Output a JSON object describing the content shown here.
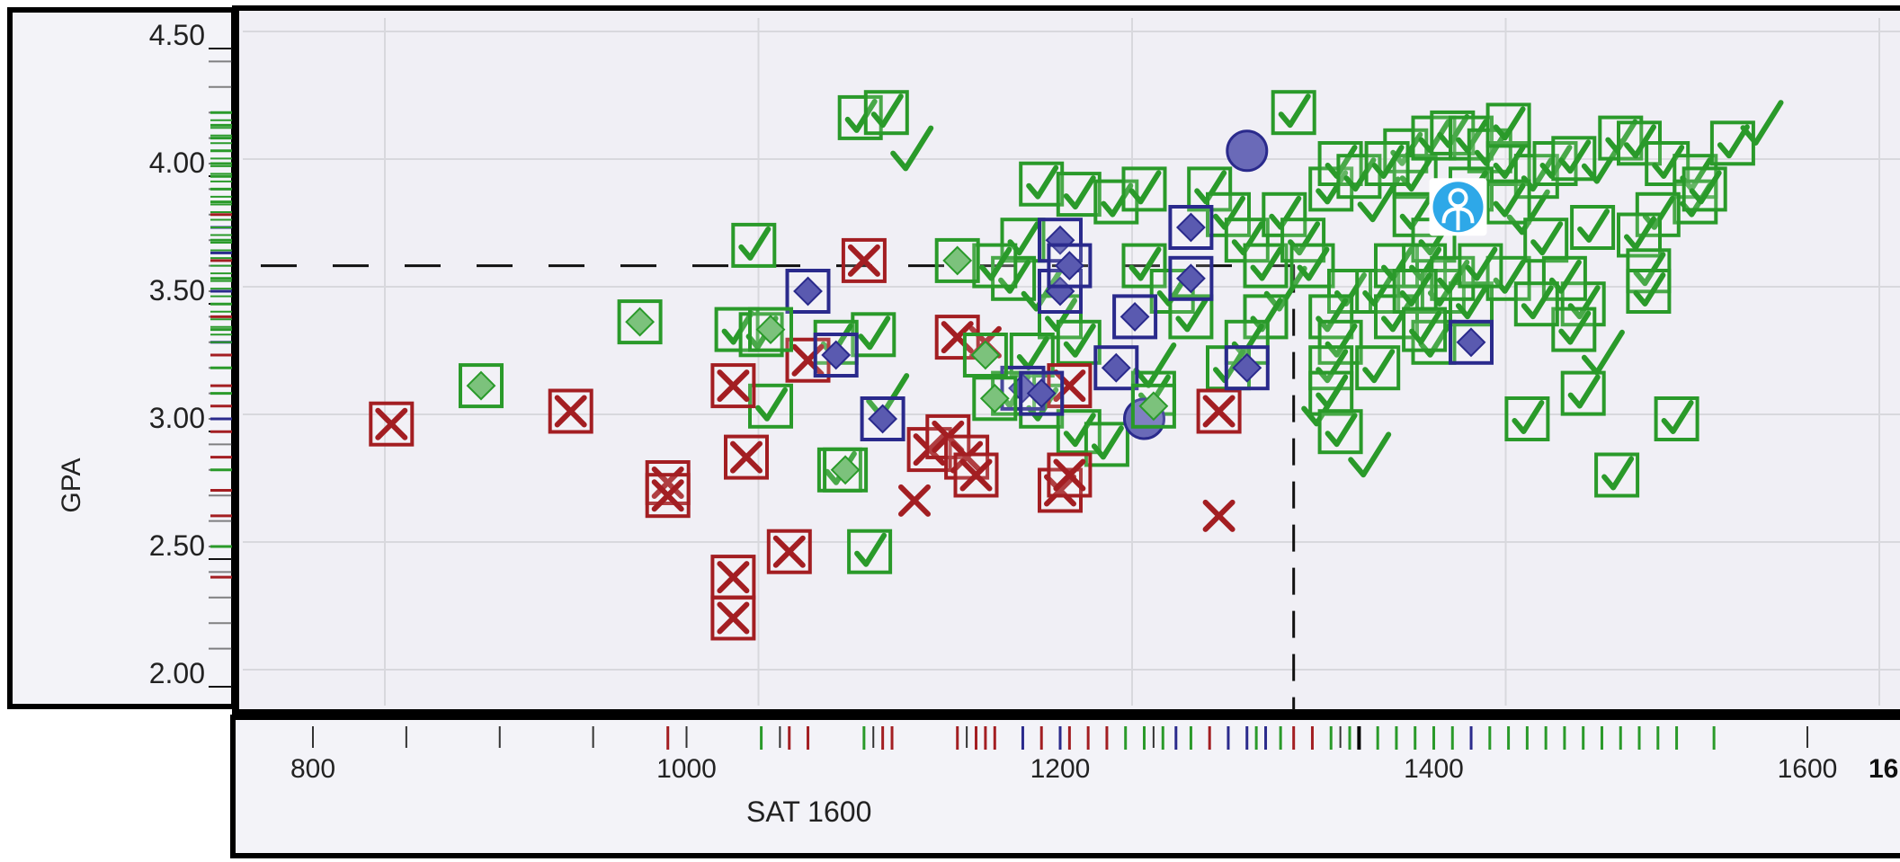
{
  "chart_data": {
    "type": "scatter",
    "xlabel": "SAT 1600",
    "ylabel": "GPA",
    "xlim": [
      780,
      1660
    ],
    "ylim": [
      1.95,
      4.55
    ],
    "x_ticks": [
      "800",
      "1000",
      "1200",
      "1400",
      "1600",
      "16"
    ],
    "y_ticks": [
      "4.50",
      "4.00",
      "3.50",
      "3.00",
      "2.50",
      "2.00"
    ],
    "grid": true,
    "reference_lines": {
      "gpa": 3.6,
      "sat": 1325
    },
    "colors": {
      "accepted": "#2a9a2a",
      "rejected": "#a31e22",
      "waitlisted": "#2a2a8c",
      "you": "#2ea8e8"
    },
    "user_marker": {
      "x": 1413,
      "y": 3.83,
      "icon": "person-icon"
    },
    "series": [
      {
        "category": "accepted",
        "marker": "check",
        "points": [
          [
            1093,
            4.18
          ],
          [
            1107,
            4.2
          ],
          [
            1120,
            4.05
          ],
          [
            1036,
            3.68
          ],
          [
            1100,
            3.33
          ],
          [
            1107,
            3.08
          ],
          [
            1098,
            2.48
          ],
          [
            1045,
            3.05
          ],
          [
            1027,
            3.35
          ],
          [
            1040,
            3.33
          ],
          [
            1080,
            3.3
          ],
          [
            1082,
            2.8
          ],
          [
            1190,
            3.92
          ],
          [
            1210,
            3.88
          ],
          [
            1230,
            3.85
          ],
          [
            1245,
            3.9
          ],
          [
            1180,
            3.7
          ],
          [
            1175,
            3.55
          ],
          [
            1165,
            3.6
          ],
          [
            1190,
            3.5
          ],
          [
            1200,
            3.4
          ],
          [
            1210,
            3.3
          ],
          [
            1185,
            3.25
          ],
          [
            1175,
            3.1
          ],
          [
            1190,
            3.05
          ],
          [
            1210,
            2.95
          ],
          [
            1225,
            2.9
          ],
          [
            1250,
            3.1
          ],
          [
            1250,
            3.2
          ],
          [
            1245,
            3.6
          ],
          [
            1260,
            3.5
          ],
          [
            1270,
            3.4
          ],
          [
            1280,
            3.9
          ],
          [
            1290,
            3.8
          ],
          [
            1300,
            3.7
          ],
          [
            1310,
            3.6
          ],
          [
            1320,
            3.5
          ],
          [
            1310,
            3.4
          ],
          [
            1300,
            3.3
          ],
          [
            1290,
            3.2
          ],
          [
            1320,
            3.8
          ],
          [
            1330,
            3.7
          ],
          [
            1335,
            3.6
          ],
          [
            1325,
            4.2
          ],
          [
            1345,
            3.9
          ],
          [
            1350,
            4.0
          ],
          [
            1355,
            3.5
          ],
          [
            1345,
            3.4
          ],
          [
            1350,
            3.3
          ],
          [
            1345,
            3.2
          ],
          [
            1345,
            3.1
          ],
          [
            1340,
            3.05
          ],
          [
            1350,
            2.95
          ],
          [
            1365,
            2.85
          ],
          [
            1370,
            3.5
          ],
          [
            1380,
            3.4
          ],
          [
            1380,
            3.6
          ],
          [
            1385,
            4.05
          ],
          [
            1390,
            3.95
          ],
          [
            1400,
            4.1
          ],
          [
            1410,
            4.12
          ],
          [
            1420,
            4.1
          ],
          [
            1430,
            4.05
          ],
          [
            1440,
            4.0
          ],
          [
            1390,
            3.8
          ],
          [
            1400,
            3.7
          ],
          [
            1395,
            3.6
          ],
          [
            1405,
            3.5
          ],
          [
            1420,
            3.45
          ],
          [
            1440,
            3.55
          ],
          [
            1450,
            3.8
          ],
          [
            1455,
            3.95
          ],
          [
            1465,
            4.0
          ],
          [
            1475,
            4.02
          ],
          [
            1490,
            4.0
          ],
          [
            1500,
            4.1
          ],
          [
            1510,
            4.08
          ],
          [
            1525,
            4.0
          ],
          [
            1540,
            3.95
          ],
          [
            1540,
            3.85
          ],
          [
            1520,
            3.8
          ],
          [
            1510,
            3.72
          ],
          [
            1515,
            3.58
          ],
          [
            1515,
            3.5
          ],
          [
            1485,
            3.75
          ],
          [
            1480,
            3.45
          ],
          [
            1475,
            3.35
          ],
          [
            1490,
            3.25
          ],
          [
            1480,
            3.1
          ],
          [
            1450,
            3.0
          ],
          [
            1400,
            3.3
          ],
          [
            1410,
            3.55
          ],
          [
            1425,
            3.6
          ],
          [
            1530,
            3.0
          ],
          [
            1498,
            2.78
          ],
          [
            1545,
            3.9
          ],
          [
            1560,
            4.08
          ],
          [
            1575,
            4.15
          ],
          [
            1410,
            3.82
          ],
          [
            1420,
            3.9
          ],
          [
            1440,
            3.85
          ],
          [
            1460,
            3.7
          ],
          [
            1470,
            3.55
          ],
          [
            1455,
            3.45
          ],
          [
            1370,
            3.85
          ],
          [
            1360,
            3.95
          ],
          [
            1375,
            4.0
          ],
          [
            1440,
            4.15
          ],
          [
            1390,
            3.5
          ],
          [
            1395,
            3.35
          ],
          [
            1370,
            3.2
          ]
        ]
      },
      {
        "category": "rejected",
        "marker": "x",
        "points": [
          [
            842,
            2.98
          ],
          [
            938,
            3.03
          ],
          [
            990,
            2.75
          ],
          [
            990,
            2.7
          ],
          [
            1025,
            3.13
          ],
          [
            1032,
            2.85
          ],
          [
            1025,
            2.38
          ],
          [
            1025,
            2.22
          ],
          [
            1055,
            2.48
          ],
          [
            1065,
            3.23
          ],
          [
            1095,
            3.62
          ],
          [
            1122,
            2.68
          ],
          [
            1130,
            2.88
          ],
          [
            1140,
            2.93
          ],
          [
            1150,
            2.85
          ],
          [
            1155,
            2.78
          ],
          [
            1160,
            3.3
          ],
          [
            1145,
            3.32
          ],
          [
            1200,
            2.72
          ],
          [
            1205,
            2.78
          ],
          [
            1205,
            3.13
          ],
          [
            1285,
            3.03
          ],
          [
            1285,
            2.62
          ]
        ]
      },
      {
        "category": "waitlisted",
        "marker": "diamond",
        "points": [
          [
            1065,
            3.5
          ],
          [
            1080,
            3.25
          ],
          [
            1105,
            3.0
          ],
          [
            1180,
            3.12
          ],
          [
            1190,
            3.1
          ],
          [
            1200,
            3.5
          ],
          [
            1200,
            3.7
          ],
          [
            1205,
            3.6
          ],
          [
            1240,
            3.4
          ],
          [
            1230,
            3.2
          ],
          [
            1270,
            3.75
          ],
          [
            1270,
            3.55
          ],
          [
            1300,
            3.2
          ],
          [
            1245,
            3.0
          ],
          [
            1300,
            4.05
          ],
          [
            1420,
            3.3
          ]
        ]
      },
      {
        "category": "accepted-diamond",
        "marker": "diamond",
        "points": [
          [
            890,
            3.13
          ],
          [
            975,
            3.38
          ],
          [
            1045,
            3.35
          ],
          [
            1085,
            2.8
          ],
          [
            1160,
            3.25
          ],
          [
            1165,
            3.08
          ],
          [
            1145,
            3.62
          ],
          [
            1250,
            3.05
          ]
        ]
      }
    ],
    "x_rug": [
      {
        "x": 990,
        "c": "rejected"
      },
      {
        "x": 1040,
        "c": "accepted"
      },
      {
        "x": 1055,
        "c": "rejected"
      },
      {
        "x": 1065,
        "c": "rejected"
      },
      {
        "x": 1095,
        "c": "accepted"
      },
      {
        "x": 1105,
        "c": "rejected"
      },
      {
        "x": 1110,
        "c": "rejected"
      },
      {
        "x": 1145,
        "c": "rejected"
      },
      {
        "x": 1155,
        "c": "rejected"
      },
      {
        "x": 1160,
        "c": "rejected"
      },
      {
        "x": 1165,
        "c": "rejected"
      },
      {
        "x": 1180,
        "c": "waitlisted"
      },
      {
        "x": 1190,
        "c": "rejected"
      },
      {
        "x": 1200,
        "c": "waitlisted"
      },
      {
        "x": 1205,
        "c": "rejected"
      },
      {
        "x": 1215,
        "c": "rejected"
      },
      {
        "x": 1225,
        "c": "rejected"
      },
      {
        "x": 1235,
        "c": "accepted"
      },
      {
        "x": 1245,
        "c": "accepted"
      },
      {
        "x": 1255,
        "c": "accepted"
      },
      {
        "x": 1262,
        "c": "waitlisted"
      },
      {
        "x": 1270,
        "c": "accepted"
      },
      {
        "x": 1280,
        "c": "rejected"
      },
      {
        "x": 1290,
        "c": "waitlisted"
      },
      {
        "x": 1300,
        "c": "waitlisted"
      },
      {
        "x": 1305,
        "c": "accepted"
      },
      {
        "x": 1310,
        "c": "waitlisted"
      },
      {
        "x": 1318,
        "c": "accepted"
      },
      {
        "x": 1325,
        "c": "rejected"
      },
      {
        "x": 1335,
        "c": "rejected"
      },
      {
        "x": 1345,
        "c": "accepted"
      },
      {
        "x": 1355,
        "c": "accepted"
      },
      {
        "x": 1360,
        "c": "accepted"
      },
      {
        "x": 1370,
        "c": "accepted"
      },
      {
        "x": 1380,
        "c": "accepted"
      },
      {
        "x": 1390,
        "c": "accepted"
      },
      {
        "x": 1400,
        "c": "accepted"
      },
      {
        "x": 1410,
        "c": "accepted"
      },
      {
        "x": 1420,
        "c": "waitlisted"
      },
      {
        "x": 1430,
        "c": "accepted"
      },
      {
        "x": 1440,
        "c": "accepted"
      },
      {
        "x": 1450,
        "c": "accepted"
      },
      {
        "x": 1460,
        "c": "accepted"
      },
      {
        "x": 1470,
        "c": "accepted"
      },
      {
        "x": 1480,
        "c": "accepted"
      },
      {
        "x": 1490,
        "c": "accepted"
      },
      {
        "x": 1500,
        "c": "accepted"
      },
      {
        "x": 1510,
        "c": "accepted"
      },
      {
        "x": 1520,
        "c": "accepted"
      },
      {
        "x": 1530,
        "c": "accepted"
      },
      {
        "x": 1550,
        "c": "accepted"
      }
    ],
    "y_rug": [
      {
        "y": 4.2,
        "c": "accepted"
      },
      {
        "y": 4.15,
        "c": "accepted"
      },
      {
        "y": 4.1,
        "c": "accepted"
      },
      {
        "y": 4.05,
        "c": "accepted"
      },
      {
        "y": 4.0,
        "c": "accepted"
      },
      {
        "y": 3.95,
        "c": "accepted"
      },
      {
        "y": 3.9,
        "c": "accepted"
      },
      {
        "y": 3.85,
        "c": "accepted"
      },
      {
        "y": 3.8,
        "c": "rejected"
      },
      {
        "y": 3.75,
        "c": "waitlisted"
      },
      {
        "y": 3.7,
        "c": "accepted"
      },
      {
        "y": 3.65,
        "c": "waitlisted"
      },
      {
        "y": 3.62,
        "c": "rejected"
      },
      {
        "y": 3.55,
        "c": "accepted"
      },
      {
        "y": 3.5,
        "c": "waitlisted"
      },
      {
        "y": 3.45,
        "c": "accepted"
      },
      {
        "y": 3.4,
        "c": "rejected"
      },
      {
        "y": 3.35,
        "c": "accepted"
      },
      {
        "y": 3.3,
        "c": "waitlisted"
      },
      {
        "y": 3.25,
        "c": "rejected"
      },
      {
        "y": 3.2,
        "c": "accepted"
      },
      {
        "y": 3.13,
        "c": "rejected"
      },
      {
        "y": 3.1,
        "c": "accepted"
      },
      {
        "y": 3.05,
        "c": "rejected"
      },
      {
        "y": 3.0,
        "c": "waitlisted"
      },
      {
        "y": 2.95,
        "c": "rejected"
      },
      {
        "y": 2.85,
        "c": "rejected"
      },
      {
        "y": 2.8,
        "c": "accepted"
      },
      {
        "y": 2.72,
        "c": "rejected"
      },
      {
        "y": 2.62,
        "c": "rejected"
      },
      {
        "y": 2.5,
        "c": "accepted"
      },
      {
        "y": 2.38,
        "c": "rejected"
      }
    ]
  }
}
